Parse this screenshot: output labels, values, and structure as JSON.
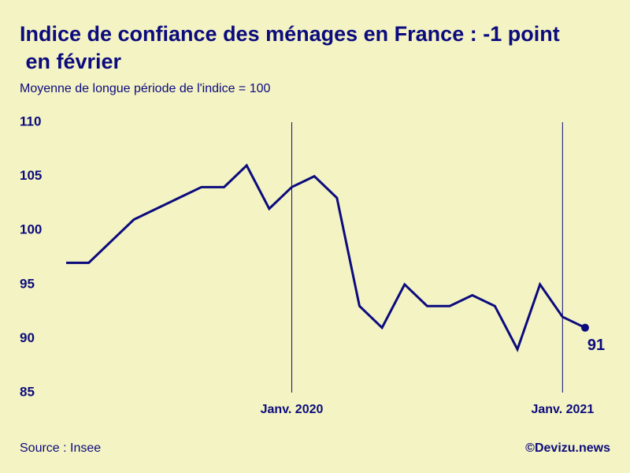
{
  "chart_data": {
    "type": "line",
    "title": "Indice de confiance des ménages en France : -1 point en février",
    "subtitle": "Moyenne de longue période de l'indice = 100",
    "source": "Source : Insee",
    "credit": "©Devizu.news",
    "categories": [
      null,
      null,
      null,
      null,
      null,
      null,
      null,
      null,
      null,
      null,
      "Janv. 2020",
      null,
      null,
      null,
      null,
      null,
      null,
      null,
      null,
      null,
      null,
      null,
      "Janv. 2021",
      null
    ],
    "series": [
      {
        "name": "Indice",
        "color": "#0b0b7e",
        "values": [
          97,
          97,
          99,
          101,
          102,
          103,
          104,
          104,
          106,
          102,
          104,
          105,
          103,
          93,
          91,
          95,
          93,
          93,
          94,
          93,
          89,
          95,
          92,
          91
        ]
      }
    ],
    "ylim": [
      85,
      110
    ],
    "yticks": [
      85,
      90,
      95,
      100,
      105,
      110
    ],
    "background": "#f4f3c3"
  }
}
